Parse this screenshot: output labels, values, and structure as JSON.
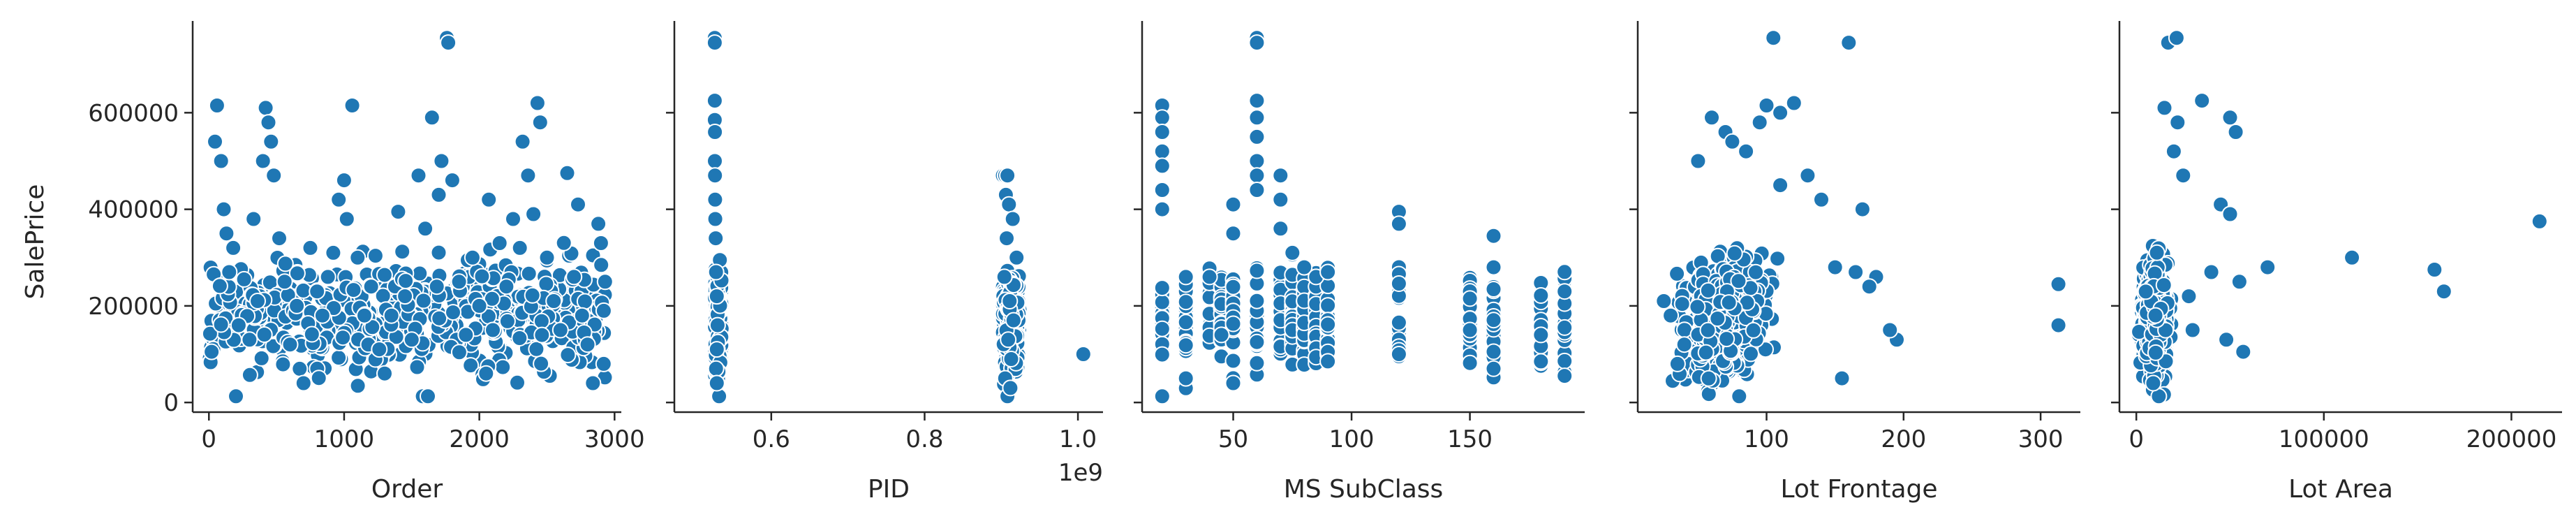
{
  "figure": {
    "ylabel": "SalePrice",
    "marker_color": "#1f77b4",
    "marker_edge": "#ffffff"
  },
  "chart_data": [
    {
      "type": "scatter",
      "xlabel": "Order",
      "ylabel": "SalePrice",
      "xlim": [
        -120,
        3050
      ],
      "ylim": [
        -20000,
        790000
      ],
      "xticks": [
        0,
        1000,
        2000,
        3000
      ],
      "xtick_labels": [
        "0",
        "1000",
        "2000",
        "3000"
      ],
      "yticks": [
        0,
        200000,
        400000,
        600000
      ],
      "ytick_labels": [
        "0",
        "200000",
        "400000",
        "600000"
      ],
      "points": [
        [
          20,
          105000
        ],
        [
          45,
          540000
        ],
        [
          60,
          615000
        ],
        [
          90,
          500000
        ],
        [
          110,
          400000
        ],
        [
          130,
          350000
        ],
        [
          150,
          270000
        ],
        [
          180,
          320000
        ],
        [
          200,
          12789
        ],
        [
          220,
          160000
        ],
        [
          260,
          255000
        ],
        [
          300,
          130000
        ],
        [
          330,
          380000
        ],
        [
          360,
          210000
        ],
        [
          400,
          500000
        ],
        [
          420,
          610000
        ],
        [
          440,
          580000
        ],
        [
          460,
          540000
        ],
        [
          480,
          470000
        ],
        [
          520,
          340000
        ],
        [
          560,
          250000
        ],
        [
          600,
          120000
        ],
        [
          650,
          200000
        ],
        [
          700,
          40000
        ],
        [
          750,
          320000
        ],
        [
          800,
          230000
        ],
        [
          840,
          180000
        ],
        [
          880,
          260000
        ],
        [
          920,
          310000
        ],
        [
          960,
          420000
        ],
        [
          1000,
          460000
        ],
        [
          1020,
          380000
        ],
        [
          1060,
          615000
        ],
        [
          1100,
          300000
        ],
        [
          1150,
          180000
        ],
        [
          1200,
          240000
        ],
        [
          1260,
          110000
        ],
        [
          1300,
          60000
        ],
        [
          1350,
          180000
        ],
        [
          1400,
          395000
        ],
        [
          1450,
          220000
        ],
        [
          1500,
          130000
        ],
        [
          1550,
          470000
        ],
        [
          1600,
          360000
        ],
        [
          1620,
          12789
        ],
        [
          1650,
          590000
        ],
        [
          1700,
          430000
        ],
        [
          1720,
          500000
        ],
        [
          1760,
          755000
        ],
        [
          1770,
          745000
        ],
        [
          1800,
          460000
        ],
        [
          1850,
          250000
        ],
        [
          1900,
          140000
        ],
        [
          1950,
          300000
        ],
        [
          2000,
          200000
        ],
        [
          2050,
          60000
        ],
        [
          2070,
          420000
        ],
        [
          2100,
          150000
        ],
        [
          2150,
          330000
        ],
        [
          2200,
          240000
        ],
        [
          2250,
          380000
        ],
        [
          2300,
          320000
        ],
        [
          2320,
          540000
        ],
        [
          2360,
          470000
        ],
        [
          2400,
          390000
        ],
        [
          2430,
          620000
        ],
        [
          2450,
          580000
        ],
        [
          2500,
          300000
        ],
        [
          2550,
          210000
        ],
        [
          2600,
          150000
        ],
        [
          2650,
          475000
        ],
        [
          2700,
          260000
        ],
        [
          2730,
          410000
        ],
        [
          2760,
          180000
        ],
        [
          2800,
          120000
        ],
        [
          2840,
          40000
        ],
        [
          2880,
          370000
        ],
        [
          2900,
          330000
        ],
        [
          2920,
          80000
        ],
        [
          2930,
          250000
        ]
      ],
      "noise_band": {
        "x_range": [
          0,
          2930
        ],
        "y_mean": 180000,
        "y_spread": 80000,
        "count": 600
      }
    },
    {
      "type": "scatter",
      "xlabel": "PID",
      "ylabel": "SalePrice",
      "xlim": [
        473600000.0,
        1032700000.0
      ],
      "ylim": [
        -20000,
        790000
      ],
      "xticks": [
        600000000.0,
        800000000.0,
        1000000000.0
      ],
      "xtick_labels": [
        "0.6",
        "0.8",
        "1.0"
      ],
      "offset_text": "1e9",
      "points": [
        [
          526300000.0,
          755000
        ],
        [
          526300000.0,
          745000
        ],
        [
          526300000.0,
          625000
        ],
        [
          526300000.0,
          585000
        ],
        [
          526500000.0,
          560000
        ],
        [
          526400000.0,
          500000
        ],
        [
          526600000.0,
          470000
        ],
        [
          526800000.0,
          420000
        ],
        [
          527000000.0,
          380000
        ],
        [
          527500000.0,
          340000
        ],
        [
          528000000.0,
          270000
        ],
        [
          529000000.0,
          220000
        ],
        [
          530000000.0,
          160000
        ],
        [
          529000000.0,
          110000
        ],
        [
          528000000.0,
          70000
        ],
        [
          529000000.0,
          40000
        ],
        [
          902000000.0,
          470000
        ],
        [
          905000000.0,
          470000
        ],
        [
          908000000.0,
          470000
        ],
        [
          906000000.0,
          430000
        ],
        [
          910000000.0,
          410000
        ],
        [
          915000000.0,
          380000
        ],
        [
          907000000.0,
          340000
        ],
        [
          920000000.0,
          300000
        ],
        [
          904000000.0,
          260000
        ],
        [
          911000000.0,
          210000
        ],
        [
          916000000.0,
          170000
        ],
        [
          909000000.0,
          130000
        ],
        [
          913000000.0,
          90000
        ],
        [
          905000000.0,
          50000
        ],
        [
          908000000.0,
          12789
        ],
        [
          912000000.0,
          30000
        ],
        [
          1007000000.0,
          100000
        ]
      ],
      "noise_band": {
        "x_ranges": [
          [
            526300000.0,
            535500000.0
          ],
          [
            902000000.0,
            924000000.0
          ]
        ],
        "y_mean": 175000,
        "y_spread": 75000,
        "count": 400
      }
    },
    {
      "type": "scatter",
      "xlabel": "MS SubClass",
      "ylabel": "SalePrice",
      "xlim": [
        11.5,
        198.5
      ],
      "ylim": [
        -20000,
        790000
      ],
      "xticks": [
        50,
        100,
        150
      ],
      "xtick_labels": [
        "50",
        "100",
        "150"
      ],
      "points": [
        [
          20,
          615000
        ],
        [
          20,
          590000
        ],
        [
          20,
          560000
        ],
        [
          20,
          520000
        ],
        [
          20,
          490000
        ],
        [
          20,
          440000
        ],
        [
          20,
          400000
        ],
        [
          20,
          12789
        ],
        [
          30,
          260000
        ],
        [
          30,
          50000
        ],
        [
          40,
          260000
        ],
        [
          45,
          140000
        ],
        [
          50,
          410000
        ],
        [
          50,
          350000
        ],
        [
          50,
          40000
        ],
        [
          60,
          755000
        ],
        [
          60,
          745000
        ],
        [
          60,
          625000
        ],
        [
          60,
          590000
        ],
        [
          60,
          550000
        ],
        [
          60,
          500000
        ],
        [
          60,
          470000
        ],
        [
          60,
          440000
        ],
        [
          70,
          470000
        ],
        [
          70,
          420000
        ],
        [
          70,
          360000
        ],
        [
          75,
          310000
        ],
        [
          80,
          280000
        ],
        [
          85,
          260000
        ],
        [
          90,
          270000
        ],
        [
          120,
          395000
        ],
        [
          120,
          370000
        ],
        [
          120,
          100000
        ],
        [
          150,
          150000
        ],
        [
          160,
          345000
        ],
        [
          160,
          280000
        ],
        [
          160,
          70000
        ],
        [
          180,
          140000
        ],
        [
          180,
          85000
        ],
        [
          190,
          230000
        ],
        [
          190,
          55000
        ]
      ],
      "category_bands": {
        "categories": [
          20,
          30,
          40,
          45,
          50,
          60,
          70,
          75,
          80,
          85,
          90,
          120,
          150,
          160,
          180,
          190
        ],
        "y_mean": 170000,
        "y_spread": 70000,
        "count_per_category": 26
      }
    },
    {
      "type": "scatter",
      "xlabel": "Lot Frontage",
      "ylabel": "SalePrice",
      "xlim": [
        6,
        329
      ],
      "ylim": [
        -20000,
        790000
      ],
      "xticks": [
        100,
        200,
        300
      ],
      "xtick_labels": [
        "100",
        "200",
        "300"
      ],
      "points": [
        [
          105,
          755000
        ],
        [
          160,
          745000
        ],
        [
          120,
          620000
        ],
        [
          100,
          615000
        ],
        [
          110,
          600000
        ],
        [
          60,
          590000
        ],
        [
          95,
          580000
        ],
        [
          70,
          560000
        ],
        [
          75,
          540000
        ],
        [
          50,
          500000
        ],
        [
          85,
          520000
        ],
        [
          130,
          470000
        ],
        [
          170,
          400000
        ],
        [
          140,
          420000
        ],
        [
          110,
          450000
        ],
        [
          150,
          280000
        ],
        [
          165,
          270000
        ],
        [
          180,
          260000
        ],
        [
          175,
          240000
        ],
        [
          195,
          130000
        ],
        [
          190,
          150000
        ],
        [
          313,
          245000
        ],
        [
          313,
          160000
        ],
        [
          155,
          50000
        ],
        [
          80,
          12789
        ],
        [
          25,
          210000
        ],
        [
          30,
          180000
        ],
        [
          40,
          120000
        ],
        [
          35,
          80000
        ]
      ],
      "cloud": {
        "x_range": [
          21,
          150
        ],
        "x_mean": 70,
        "x_spread": 20,
        "y_mean": 175000,
        "y_spread": 75000,
        "count": 900
      }
    },
    {
      "type": "scatter",
      "xlabel": "Lot Area",
      "ylabel": "SalePrice",
      "xlim": [
        -9000,
        227000
      ],
      "ylim": [
        -20000,
        790000
      ],
      "xticks": [
        0,
        100000,
        200000
      ],
      "xtick_labels": [
        "0",
        "100000",
        "200000"
      ],
      "points": [
        [
          17000,
          745000
        ],
        [
          21500,
          755000
        ],
        [
          15000,
          610000
        ],
        [
          35000,
          625000
        ],
        [
          22000,
          580000
        ],
        [
          20000,
          520000
        ],
        [
          25000,
          470000
        ],
        [
          50000,
          590000
        ],
        [
          53000,
          560000
        ],
        [
          45000,
          410000
        ],
        [
          50000,
          390000
        ],
        [
          55000,
          250000
        ],
        [
          40000,
          270000
        ],
        [
          70000,
          280000
        ],
        [
          115000,
          300000
        ],
        [
          159000,
          275000
        ],
        [
          164000,
          230000
        ],
        [
          215000,
          375000
        ],
        [
          57000,
          105000
        ],
        [
          48000,
          130000
        ],
        [
          12000,
          12789
        ],
        [
          9000,
          40000
        ],
        [
          30000,
          150000
        ],
        [
          28000,
          220000
        ]
      ],
      "cloud": {
        "x_range": [
          1300,
          45000
        ],
        "x_mean": 10000,
        "x_spread": 4500,
        "y_mean": 175000,
        "y_spread": 75000,
        "count": 700
      }
    }
  ]
}
